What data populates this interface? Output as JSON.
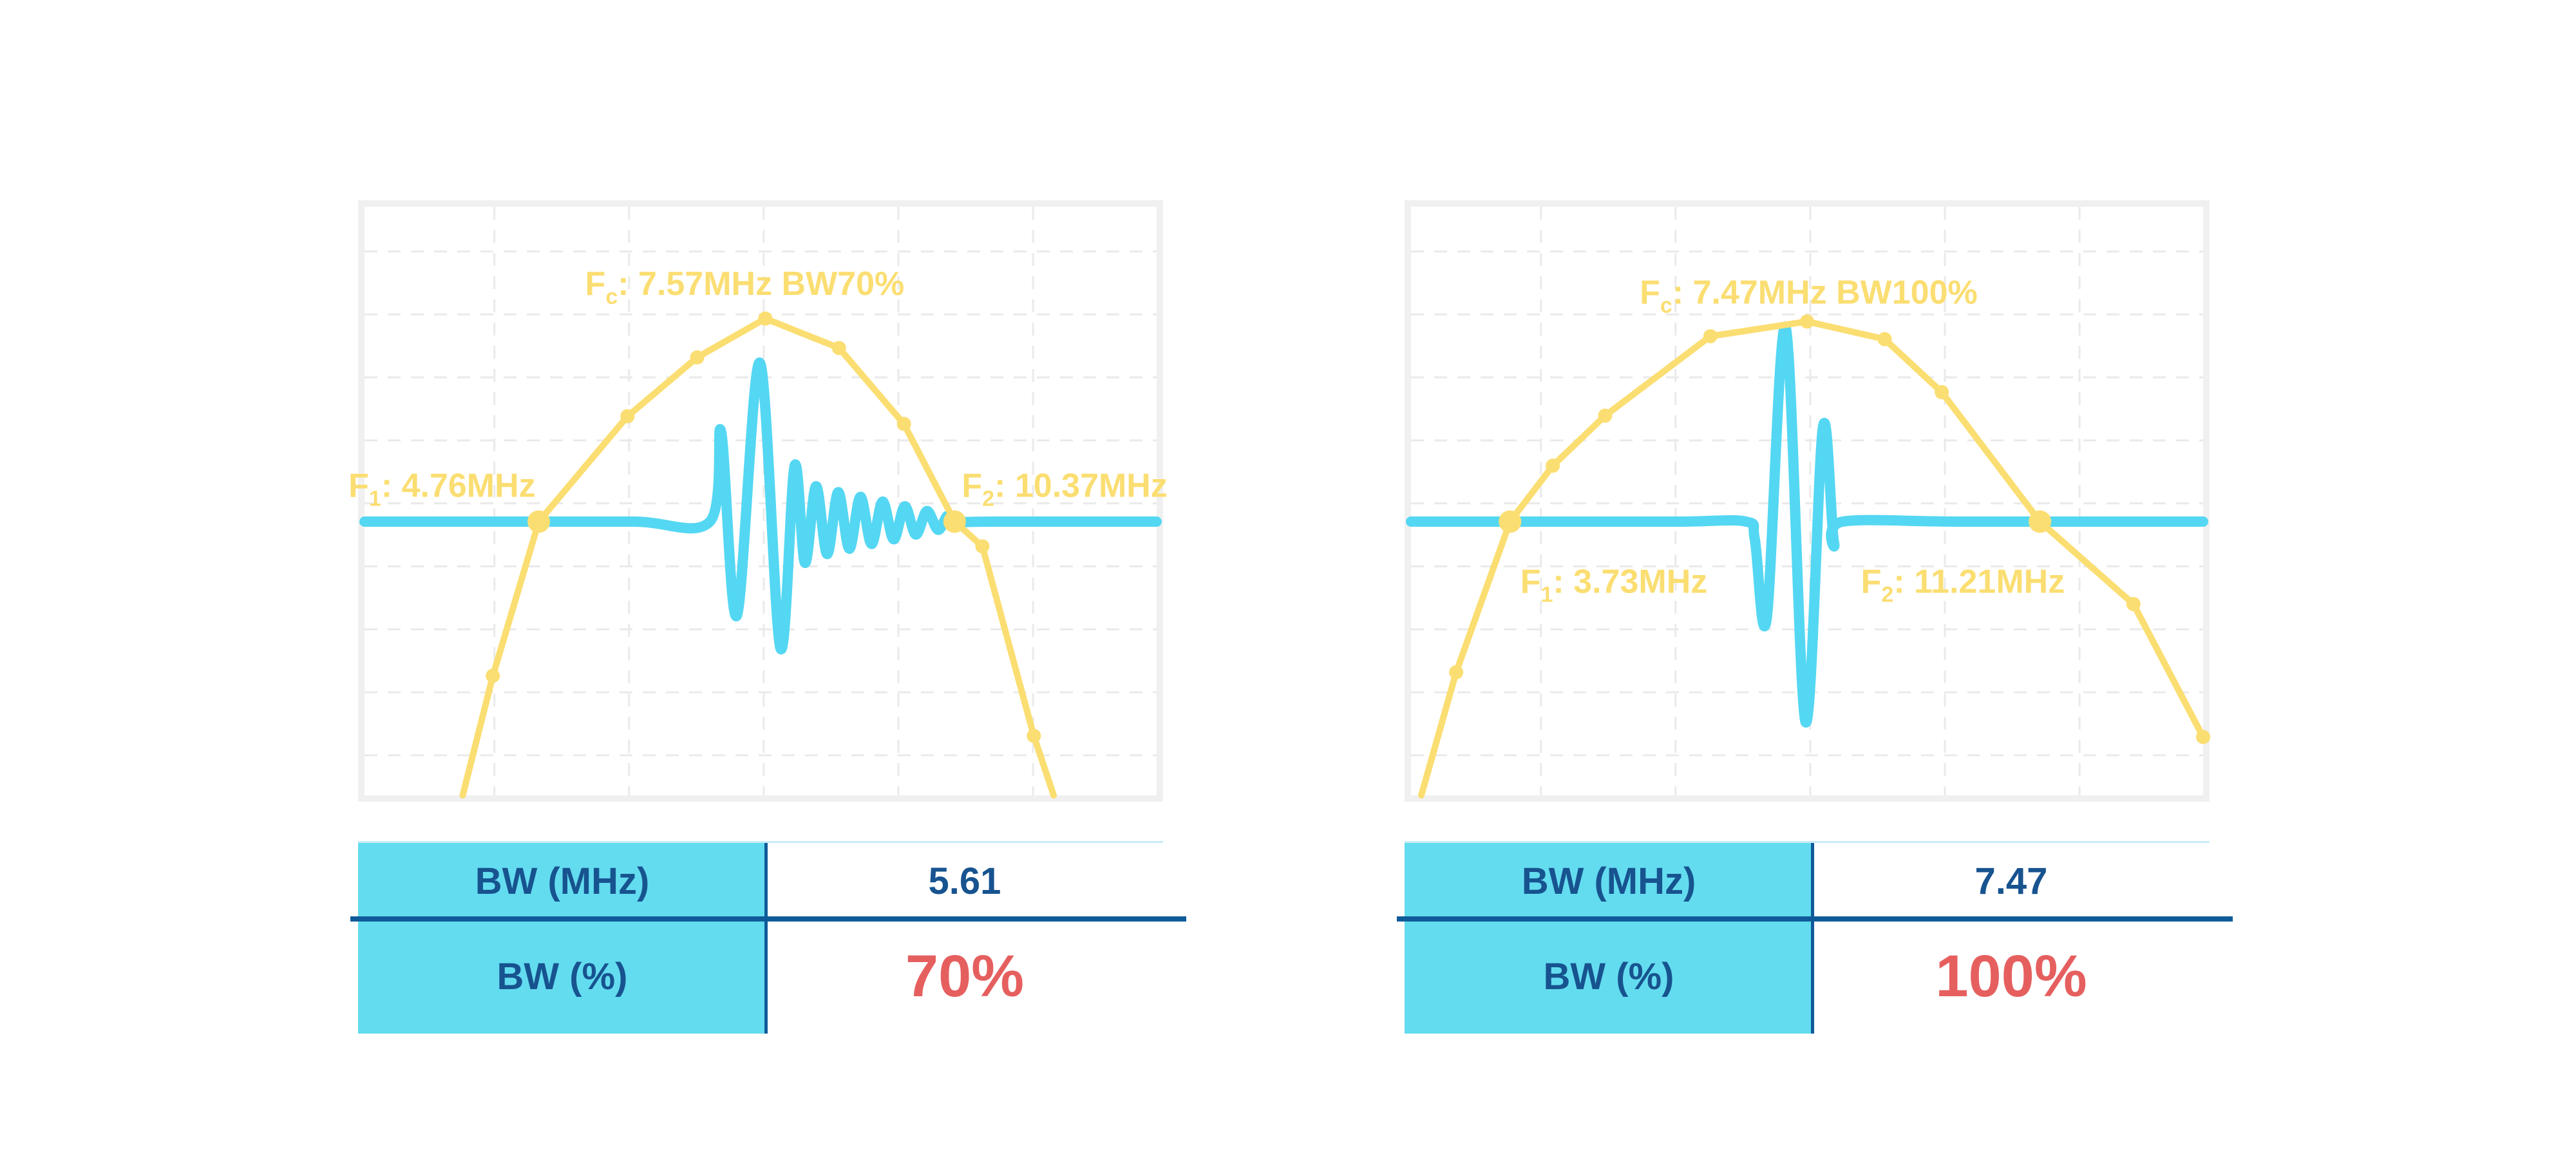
{
  "colors": {
    "yellow": "#FBDE72",
    "cyan": "#54D7F2",
    "table_cyan": "#63DCEF",
    "table_top_border": "#C9ECF6",
    "navy_line": "#0F5B99",
    "navy_text": "#17538F",
    "red": "#E65F5F",
    "frame_gray": "#F0F0F0",
    "grid_gray": "#EAEAEA"
  },
  "chart_data": [
    {
      "type": "line",
      "name": "pulse-spectrum-70pct-bandwidth",
      "fc_mhz": 7.57,
      "f1_mhz": 4.76,
      "f2_mhz": 10.37,
      "bw_mhz": 5.61,
      "bw_pct": 70,
      "labels": {
        "fc": {
          "base": "F",
          "sub": "c",
          "rest": ": 7.57MHz BW70%",
          "x": 48.0,
          "y": 13.0,
          "anchor": "middle"
        },
        "f1": {
          "base": "F",
          "sub": "1",
          "rest": ": 4.76MHz",
          "x": 21.6,
          "y": 47.3,
          "anchor": "end"
        },
        "f2": {
          "base": "F",
          "sub": "2",
          "rest": ": 10.37MHz",
          "x": 75.4,
          "y": 47.3,
          "anchor": "start"
        }
      },
      "baseline_y_pct": 53.5,
      "spectrum_points_pct": [
        [
          12.4,
          100.0,
          0
        ],
        [
          16.2,
          79.7,
          1
        ],
        [
          22.0,
          53.5,
          2
        ],
        [
          33.2,
          35.6,
          1
        ],
        [
          42.0,
          25.6,
          1
        ],
        [
          50.6,
          19.0,
          1
        ],
        [
          59.9,
          24.0,
          1
        ],
        [
          68.1,
          36.9,
          1
        ],
        [
          74.5,
          53.5,
          2
        ],
        [
          78.0,
          57.7,
          1
        ],
        [
          84.5,
          89.9,
          1
        ],
        [
          87.0,
          100.0,
          0
        ]
      ],
      "waveform_points_pct": [
        [
          0,
          0
        ],
        [
          18,
          0
        ],
        [
          34,
          0
        ],
        [
          43.6,
          0
        ],
        [
          45.0,
          15.4
        ],
        [
          47.0,
          -16
        ],
        [
          49.9,
          27
        ],
        [
          52.5,
          -21.5
        ],
        [
          54.3,
          9.5
        ],
        [
          55.6,
          -7
        ],
        [
          57.0,
          6
        ],
        [
          58.4,
          -5.5
        ],
        [
          59.8,
          5
        ],
        [
          61.2,
          -4.6
        ],
        [
          62.6,
          4.2
        ],
        [
          64.0,
          -3.8
        ],
        [
          65.4,
          3.4
        ],
        [
          66.8,
          -3.0
        ],
        [
          68.2,
          2.6
        ],
        [
          69.6,
          -2.2
        ],
        [
          71.0,
          1.8
        ],
        [
          72.4,
          -1.4
        ],
        [
          73.6,
          1.0
        ],
        [
          74.6,
          0
        ],
        [
          80,
          0
        ],
        [
          100,
          0
        ]
      ],
      "table": {
        "rows": [
          {
            "label": "BW (MHz)",
            "value": "5.61"
          },
          {
            "label": "BW (%)",
            "value": "70%"
          }
        ]
      }
    },
    {
      "type": "line",
      "name": "pulse-spectrum-100pct-bandwidth",
      "fc_mhz": 7.47,
      "f1_mhz": 3.73,
      "f2_mhz": 11.21,
      "bw_mhz": 7.47,
      "bw_pct": 100,
      "labels": {
        "fc": {
          "base": "F",
          "sub": "c",
          "rest": ": 7.47MHz BW100%",
          "x": 50.2,
          "y": 14.5,
          "anchor": "middle"
        },
        "f1": {
          "base": "F",
          "sub": "1",
          "rest": ": 3.73MHz",
          "x": 13.8,
          "y": 63.6,
          "anchor": "start"
        },
        "f2": {
          "base": "F",
          "sub": "2",
          "rest": ": 11.21MHz",
          "x": 56.8,
          "y": 63.6,
          "anchor": "start"
        }
      },
      "baseline_y_pct": 53.5,
      "spectrum_points_pct": [
        [
          1.3,
          100.0,
          0
        ],
        [
          5.7,
          79.1,
          1
        ],
        [
          12.5,
          53.5,
          2
        ],
        [
          17.9,
          44.0,
          1
        ],
        [
          24.5,
          35.5,
          1
        ],
        [
          37.8,
          22.0,
          1
        ],
        [
          50.0,
          19.5,
          1
        ],
        [
          59.8,
          22.5,
          1
        ],
        [
          67.0,
          31.5,
          1
        ],
        [
          79.4,
          53.5,
          2
        ],
        [
          91.2,
          67.5,
          1
        ],
        [
          100.0,
          90.1,
          1
        ]
      ],
      "waveform_points_pct": [
        [
          0,
          0
        ],
        [
          18,
          0
        ],
        [
          34,
          0
        ],
        [
          42.3,
          0
        ],
        [
          43.4,
          -3
        ],
        [
          44.9,
          -16.5
        ],
        [
          47.3,
          33
        ],
        [
          49.8,
          -34
        ],
        [
          52.0,
          16
        ],
        [
          53.4,
          -3.5
        ],
        [
          54.5,
          0
        ],
        [
          70,
          0
        ],
        [
          100,
          0
        ]
      ],
      "table": {
        "rows": [
          {
            "label": "BW (MHz)",
            "value": "7.47"
          },
          {
            "label": "BW (%)",
            "value": "100%"
          }
        ]
      }
    }
  ]
}
